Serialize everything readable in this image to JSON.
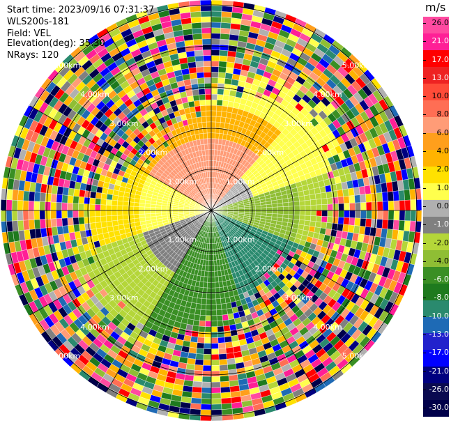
{
  "header": {
    "start_time": "Start time: 2023/09/16 07:31:37",
    "instrument": "WLS200s-181",
    "field": "Field: VEL",
    "elevation": "Elevation(deg): 35.30",
    "nrays": "NRays: 120"
  },
  "colorbar": {
    "unit": "m/s",
    "labels": [
      "26.0",
      "21.0",
      "17.0",
      "13.0",
      "10.0",
      "8.0",
      "6.0",
      "4.0",
      "2.0",
      "1.0",
      "0.0",
      "-1.0",
      "-2.0",
      "-4.0",
      "-6.0",
      "-8.0",
      "-10.0",
      "-13.0",
      "-17.0",
      "-21.0",
      "-26.0",
      "-30.0"
    ],
    "colors": [
      "#ff4aa0",
      "#ff1f96",
      "#ff0000",
      "#ee2222",
      "#ff4b38",
      "#ff6e54",
      "#ff9c77",
      "#ff9f1c",
      "#ffb300",
      "#ffe100",
      "#ffff4d",
      "#b0b0b0",
      "#808080",
      "#b4d639",
      "#8fbe34",
      "#3a8f24",
      "#1e7a1e",
      "#2a8a6e",
      "#1e6ab5",
      "#2222cc",
      "#0000ff",
      "#000080",
      "#0a0a50",
      "#00004a"
    ]
  },
  "range_labels": [
    "1.00km",
    "2.00km",
    "3.00km",
    "4.00km",
    "5.00km"
  ],
  "palette": {
    "background": "#ffffff",
    "ring_line": "#000000"
  }
}
